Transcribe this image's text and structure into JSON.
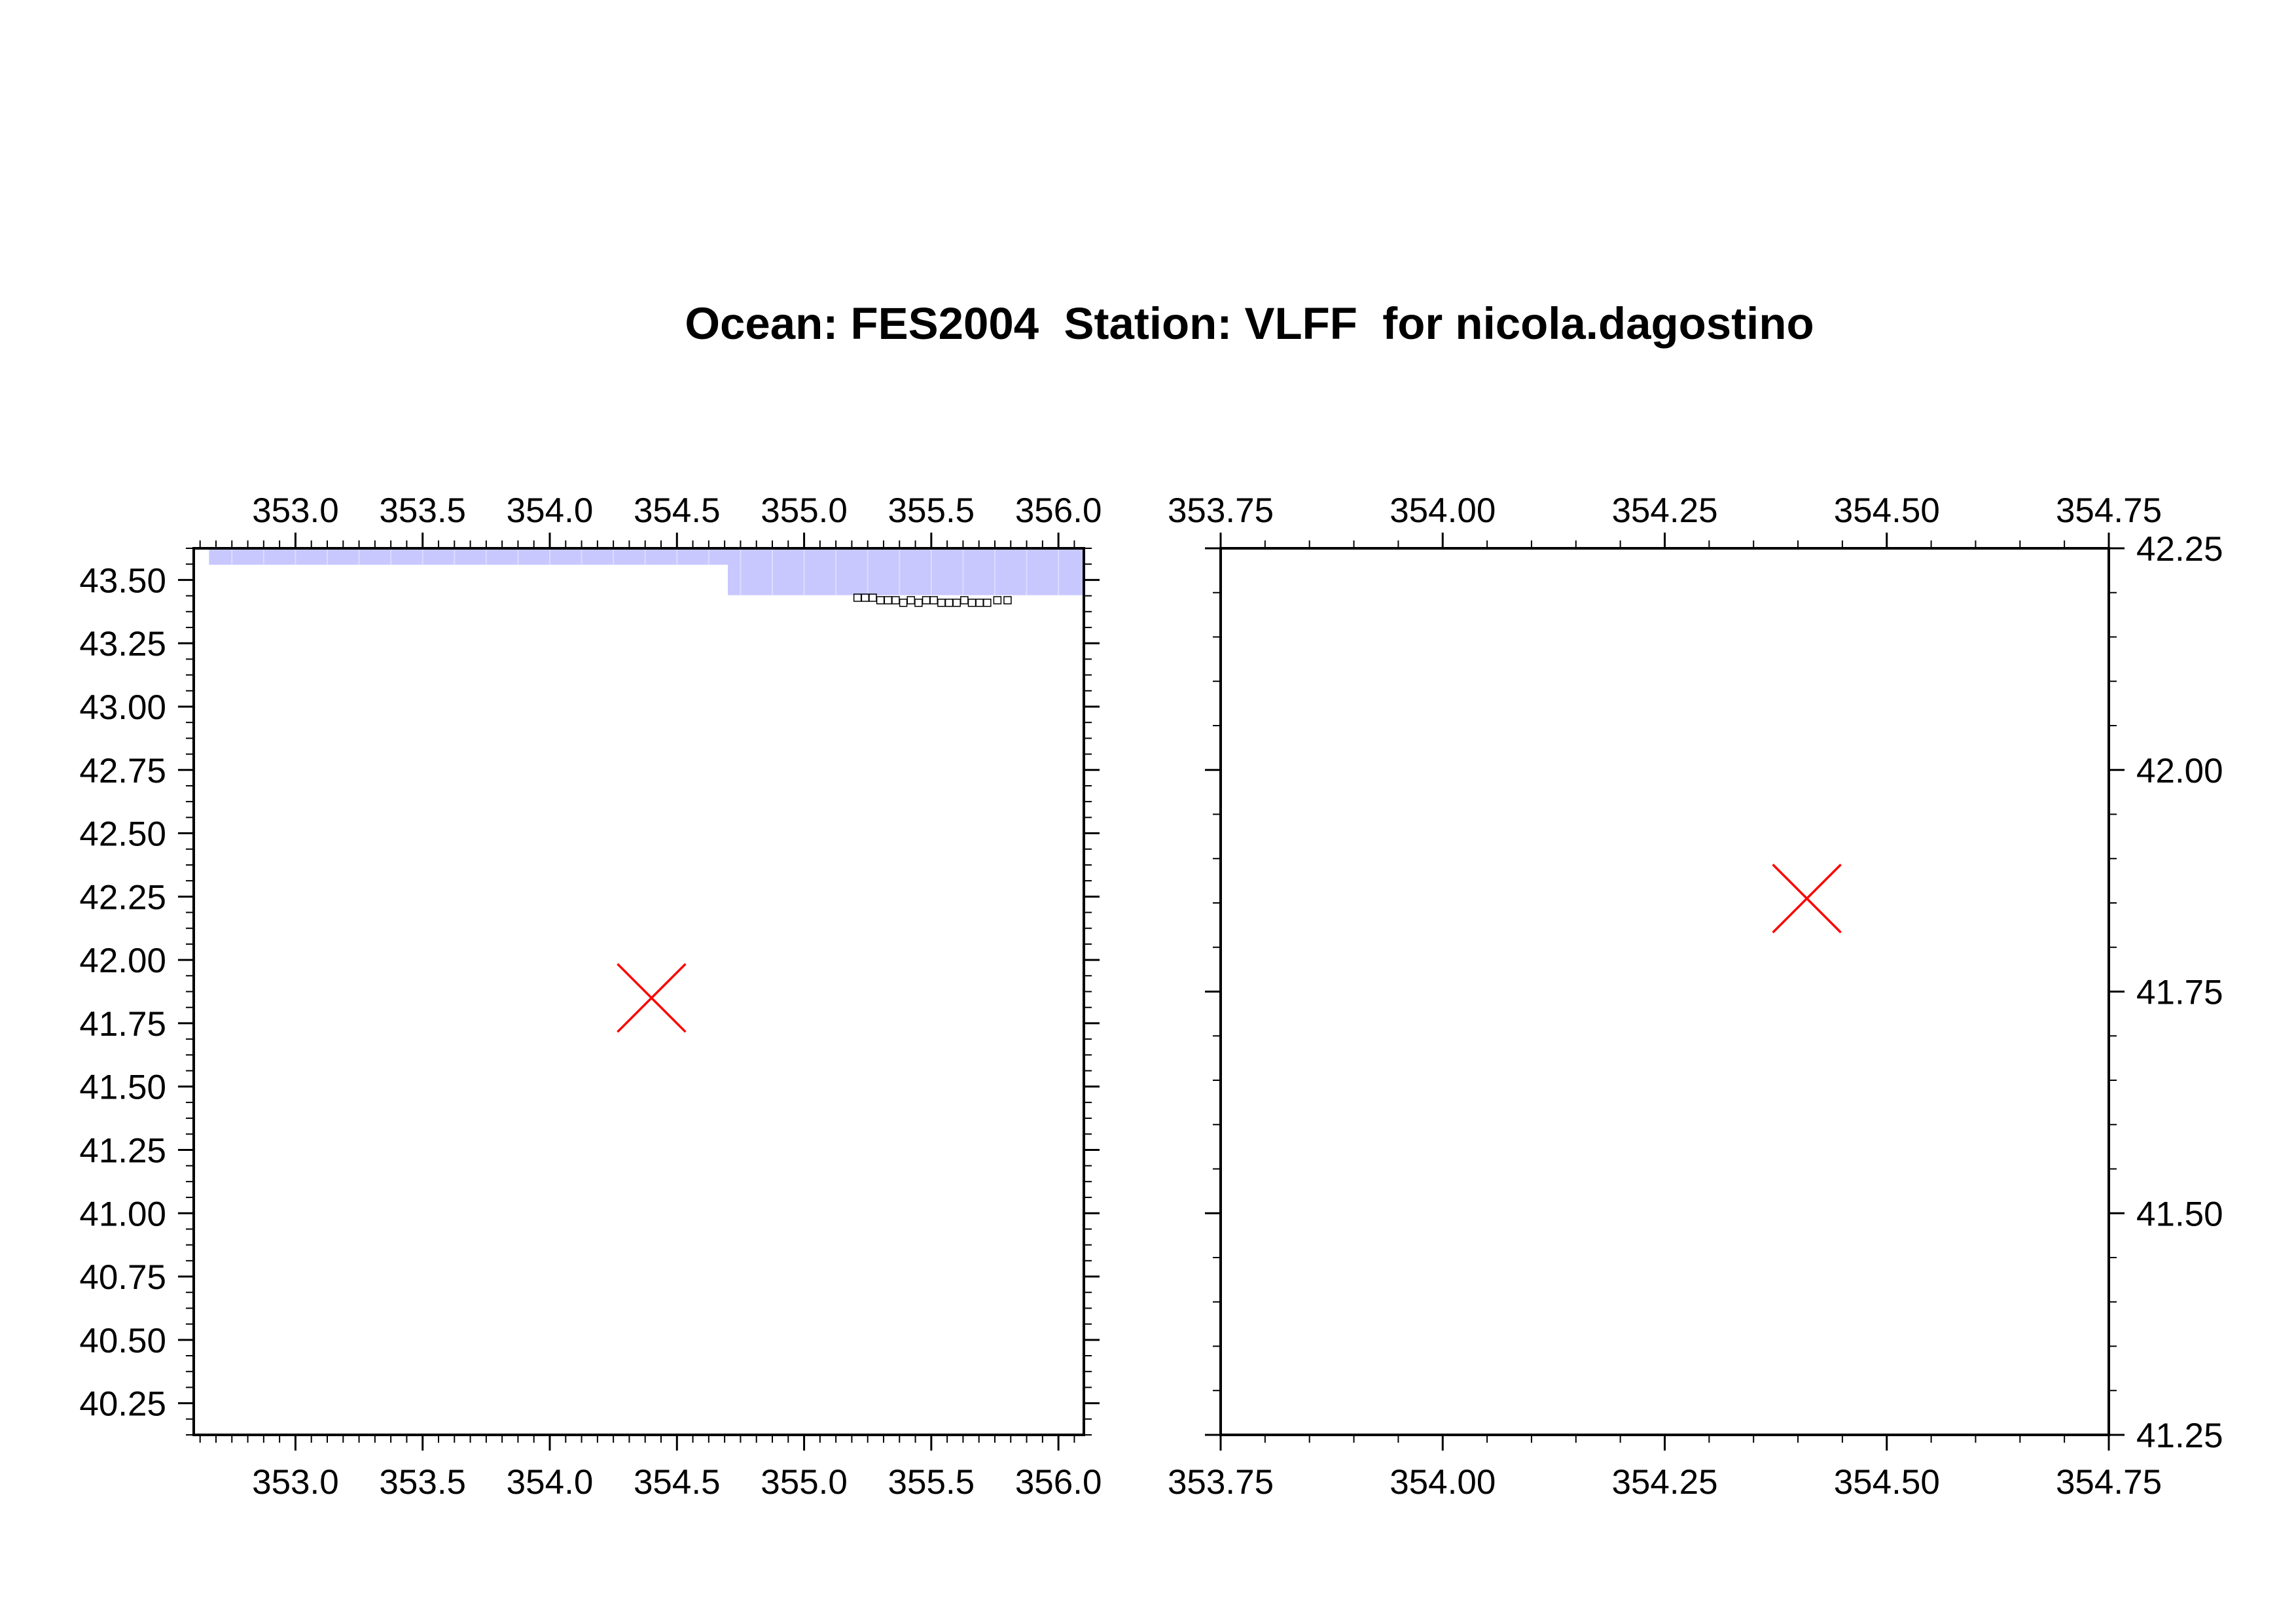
{
  "title": "Ocean: FES2004  Station: VLFF  for nicola.dagostino",
  "colors": {
    "ocean_fill": "#c8c8ff",
    "marker": "#ff0000",
    "axis": "#000000",
    "grid_cell_edge": "#dcdcff"
  },
  "chart_data": [
    {
      "type": "map",
      "panel": "overview",
      "xlim": [
        352.6,
        356.1
      ],
      "ylim": [
        40.125,
        43.625
      ],
      "x_ticks": [
        353.0,
        353.5,
        354.0,
        354.5,
        355.0,
        355.5,
        356.0
      ],
      "x_tick_labels": [
        "353.0",
        "353.5",
        "354.0",
        "354.5",
        "355.0",
        "355.5",
        "356.0"
      ],
      "y_ticks": [
        40.25,
        40.5,
        40.75,
        41.0,
        41.25,
        41.5,
        41.75,
        42.0,
        42.25,
        42.5,
        42.75,
        43.0,
        43.25,
        43.5
      ],
      "y_tick_labels": [
        "40.25",
        "40.50",
        "40.75",
        "41.00",
        "41.25",
        "41.50",
        "41.75",
        "42.00",
        "42.25",
        "42.50",
        "42.75",
        "43.00",
        "43.25",
        "43.50"
      ],
      "x_minor_step": 0.0625,
      "y_minor_step": 0.0625,
      "x_tick_sides": "top-bottom",
      "y_label_side": "left",
      "ocean_cells": [
        {
          "lon0": 352.66,
          "lon1": 354.7,
          "lat0": 43.56,
          "lat1": 43.625
        },
        {
          "lon0": 354.7,
          "lon1": 356.1,
          "lat0": 43.44,
          "lat1": 43.625
        }
      ],
      "ocean_cell_size": 0.125,
      "coast_points": [
        [
          355.21,
          43.43
        ],
        [
          355.24,
          43.43
        ],
        [
          355.27,
          43.43
        ],
        [
          355.3,
          43.42
        ],
        [
          355.33,
          43.42
        ],
        [
          355.36,
          43.42
        ],
        [
          355.39,
          43.41
        ],
        [
          355.42,
          43.42
        ],
        [
          355.45,
          43.41
        ],
        [
          355.48,
          43.42
        ],
        [
          355.51,
          43.42
        ],
        [
          355.54,
          43.41
        ],
        [
          355.57,
          43.41
        ],
        [
          355.6,
          43.41
        ],
        [
          355.63,
          43.42
        ],
        [
          355.66,
          43.41
        ],
        [
          355.69,
          43.41
        ],
        [
          355.72,
          43.41
        ],
        [
          355.76,
          43.42
        ],
        [
          355.8,
          43.42
        ]
      ],
      "station": {
        "lon": 354.4,
        "lat": 41.85
      }
    },
    {
      "type": "map",
      "panel": "zoom",
      "xlim": [
        353.75,
        354.75
      ],
      "ylim": [
        41.25,
        42.25
      ],
      "x_ticks": [
        353.75,
        354.0,
        354.25,
        354.5,
        354.75
      ],
      "x_tick_labels": [
        "353.75",
        "354.00",
        "354.25",
        "354.50",
        "354.75"
      ],
      "y_ticks": [
        41.25,
        41.5,
        41.75,
        42.0,
        42.25
      ],
      "y_tick_labels": [
        "41.25",
        "41.50",
        "41.75",
        "42.00",
        "42.25"
      ],
      "x_minor_step": 0.05,
      "y_minor_step": 0.05,
      "x_tick_sides": "top-bottom",
      "y_label_side": "right",
      "ocean_cells": [],
      "coast_points": [],
      "station": {
        "lon": 354.41,
        "lat": 41.855
      }
    }
  ]
}
